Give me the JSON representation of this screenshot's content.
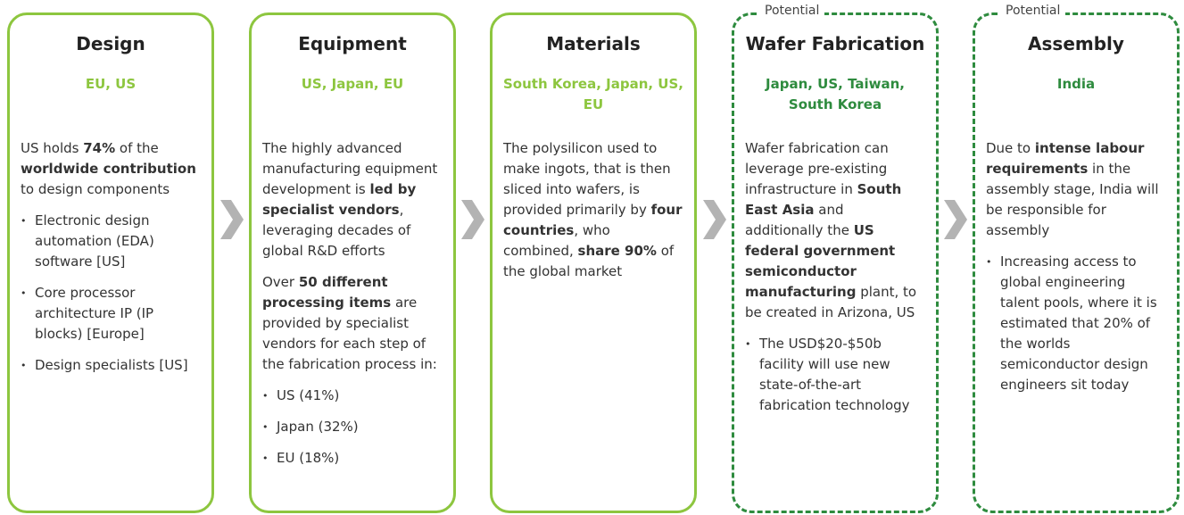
{
  "cards": [
    {
      "title": "Design",
      "region": "EU, US",
      "blocks": [
        {
          "kind": "p",
          "runs": [
            {
              "text": "US holds "
            },
            {
              "text": "74%",
              "bold": true
            },
            {
              "text": " of the "
            },
            {
              "text": "worldwide contribution",
              "bold": true
            },
            {
              "text": " to design components"
            }
          ]
        },
        {
          "kind": "li",
          "runs": [
            {
              "text": "Electronic design automation (EDA) software [US]"
            }
          ]
        },
        {
          "kind": "li",
          "runs": [
            {
              "text": "Core processor architecture IP (IP blocks) [Europe]"
            }
          ]
        },
        {
          "kind": "li",
          "runs": [
            {
              "text": "Design specialists [US]"
            }
          ]
        }
      ]
    },
    {
      "title": "Equipment",
      "region": "US, Japan, EU",
      "blocks": [
        {
          "kind": "p",
          "runs": [
            {
              "text": "The highly advanced manufacturing equipment development is "
            },
            {
              "text": "led by specialist vendors",
              "bold": true
            },
            {
              "text": ", leveraging decades of global R&D efforts"
            }
          ]
        },
        {
          "kind": "p",
          "runs": [
            {
              "text": "Over "
            },
            {
              "text": "50 different processing items",
              "bold": true
            },
            {
              "text": " are provided by specialist vendors for each step of the fabrication process in:"
            }
          ]
        },
        {
          "kind": "li",
          "runs": [
            {
              "text": "US (41%)"
            }
          ]
        },
        {
          "kind": "li",
          "runs": [
            {
              "text": "Japan (32%)"
            }
          ]
        },
        {
          "kind": "li",
          "runs": [
            {
              "text": "EU (18%)"
            }
          ]
        }
      ]
    },
    {
      "title": "Materials",
      "region": "South Korea, Japan, US, EU",
      "blocks": [
        {
          "kind": "p",
          "runs": [
            {
              "text": "The polysilicon used to make ingots, that is then sliced into wafers, is provided primarily by "
            },
            {
              "text": "four countries",
              "bold": true
            },
            {
              "text": ", who combined, "
            },
            {
              "text": "share 90%",
              "bold": true
            },
            {
              "text": " of the global market"
            }
          ]
        }
      ]
    },
    {
      "label": "Potential",
      "title": "Wafer Fabrication",
      "region": "Japan, US, Taiwan, South Korea",
      "blocks": [
        {
          "kind": "p",
          "runs": [
            {
              "text": "Wafer fabrication can leverage pre-existing infrastructure in "
            },
            {
              "text": "South East Asia",
              "bold": true
            },
            {
              "text": " and additionally the "
            },
            {
              "text": "US federal government semiconductor manufacturing",
              "bold": true
            },
            {
              "text": " plant, to be created in Arizona, US"
            }
          ]
        },
        {
          "kind": "li",
          "runs": [
            {
              "text": "The USD$20-$50b facility will use new state-of-the-art fabrication technology"
            }
          ]
        }
      ]
    },
    {
      "label": "Potential",
      "title": "Assembly",
      "region": "India",
      "blocks": [
        {
          "kind": "p",
          "runs": [
            {
              "text": "Due to "
            },
            {
              "text": "intense labour requirements",
              "bold": true
            },
            {
              "text": " in the assembly stage, India will be responsible for assembly"
            }
          ]
        },
        {
          "kind": "li",
          "runs": [
            {
              "text": "Increasing access to global engineering talent pools, where it is estimated that 20% of the worlds semiconductor design engineers sit today"
            }
          ]
        }
      ]
    }
  ]
}
